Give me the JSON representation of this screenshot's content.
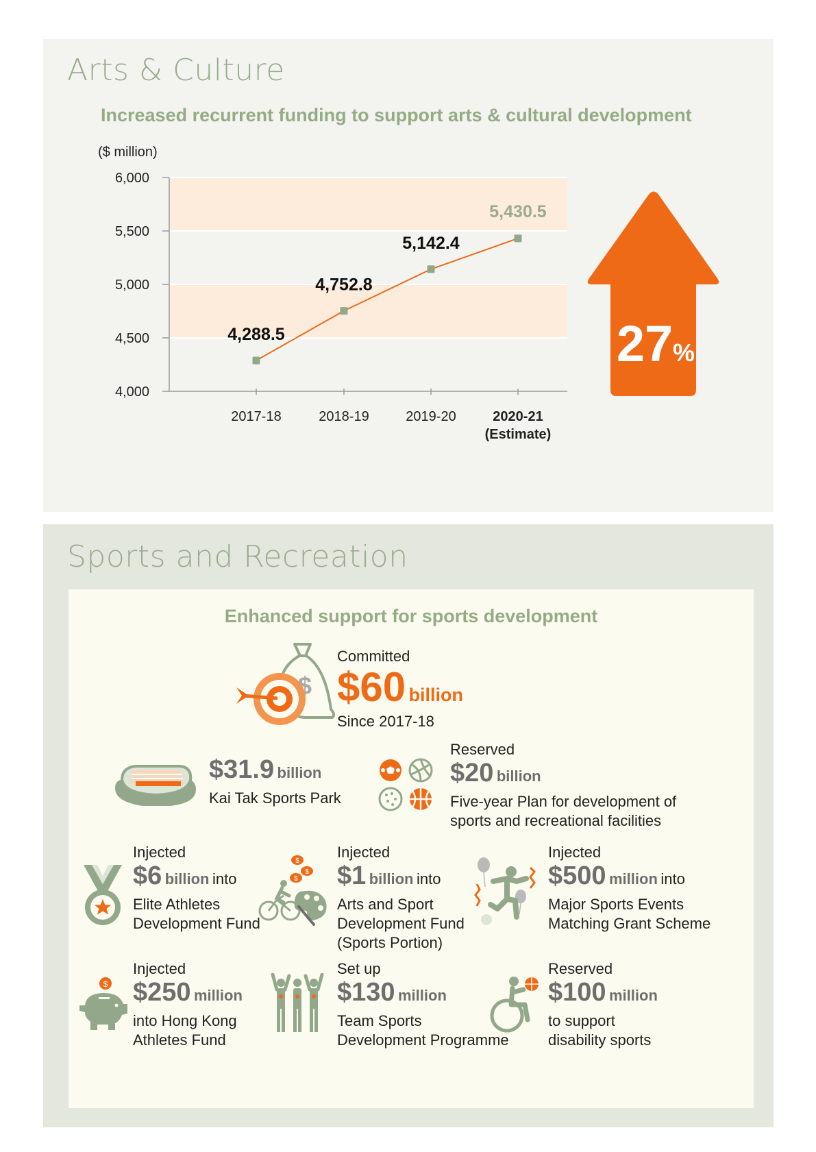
{
  "arts": {
    "title": "Arts & Culture",
    "subtitle": "Increased recurrent funding to support arts & cultural development",
    "unit_label": "($ million)",
    "increase_badge": {
      "number": "27",
      "percent": "%"
    }
  },
  "chart_data": {
    "type": "line",
    "title": "Increased recurrent funding to support arts & cultural development",
    "ylabel": "($ million)",
    "categories": [
      [
        "2017-18"
      ],
      [
        "2018-19"
      ],
      [
        "2019-20"
      ],
      [
        "2020-21",
        "(Estimate)"
      ]
    ],
    "values": [
      4288.5,
      4752.8,
      5142.4,
      5430.5
    ],
    "value_labels": [
      "4,288.5",
      "4,752.8",
      "5,142.4",
      "5,430.5"
    ],
    "ylim": [
      4000,
      6000
    ],
    "yticks": [
      4000,
      4500,
      5000,
      5500,
      6000
    ],
    "ytick_labels": [
      "4,000",
      "4,500",
      "5,000",
      "5,500",
      "6,000"
    ],
    "bands": [
      [
        4500,
        5000
      ],
      [
        5500,
        6000
      ]
    ],
    "highlight_last": true,
    "colors": {
      "line": "#ef6a16",
      "marker": "#93a88a",
      "band": "#fdebdb",
      "arrow": "#ef6a16",
      "estimate_label": "#9aab8f"
    }
  },
  "sports": {
    "title": "Sports and Recreation",
    "subtitle": "Enhanced support for sports development",
    "hero": {
      "label": "Committed",
      "amount": "$60",
      "unit": "billion",
      "desc": "Since 2017-18"
    },
    "park": {
      "amount": "$31.9",
      "unit": "billion",
      "desc": "Kai Tak Sports Park"
    },
    "facilities": {
      "label": "Reserved",
      "amount": "$20",
      "unit": "billion",
      "desc1": "Five-year Plan for development of",
      "desc2": "sports and recreational facilities"
    },
    "elite": {
      "label": "Injected",
      "amount": "$6",
      "unit": "billion",
      "tail": "into",
      "desc1": "Elite Athletes",
      "desc2": "Development Fund"
    },
    "arts_sport": {
      "label": "Injected",
      "amount": "$1",
      "unit": "billion",
      "tail": "into",
      "desc1": "Arts and Sport",
      "desc2": "Development Fund",
      "desc3": "(Sports Portion)"
    },
    "major_events": {
      "label": "Injected",
      "amount": "$500",
      "unit": "million",
      "tail": "into",
      "desc1": "Major Sports Events",
      "desc2": "Matching Grant Scheme"
    },
    "hk_athletes": {
      "label": "Injected",
      "amount": "$250",
      "unit": "million",
      "desc1": "into Hong Kong",
      "desc2": "Athletes Fund"
    },
    "team_sports": {
      "label": "Set up",
      "amount": "$130",
      "unit": "million",
      "desc1": "Team Sports",
      "desc2": "Development Programme"
    },
    "disability": {
      "label": "Reserved",
      "amount": "$100",
      "unit": "million",
      "desc1": "to support",
      "desc2": "disability sports"
    }
  },
  "icons": {
    "hero": "target-and-money-bag-icon",
    "park": "stadium-icon",
    "facilities": "sports-balls-icon",
    "elite": "medal-icon",
    "arts_sport": "cyclist-and-palette-icon",
    "major_events": "footballer-with-balloons-icon",
    "hk_athletes": "piggy-bank-icon",
    "team_sports": "team-athletes-icon",
    "disability": "wheelchair-basketball-icon"
  },
  "colors": {
    "accent": "#ef6a16",
    "sage": "#93a88a",
    "grey": "#6e6e6e"
  }
}
